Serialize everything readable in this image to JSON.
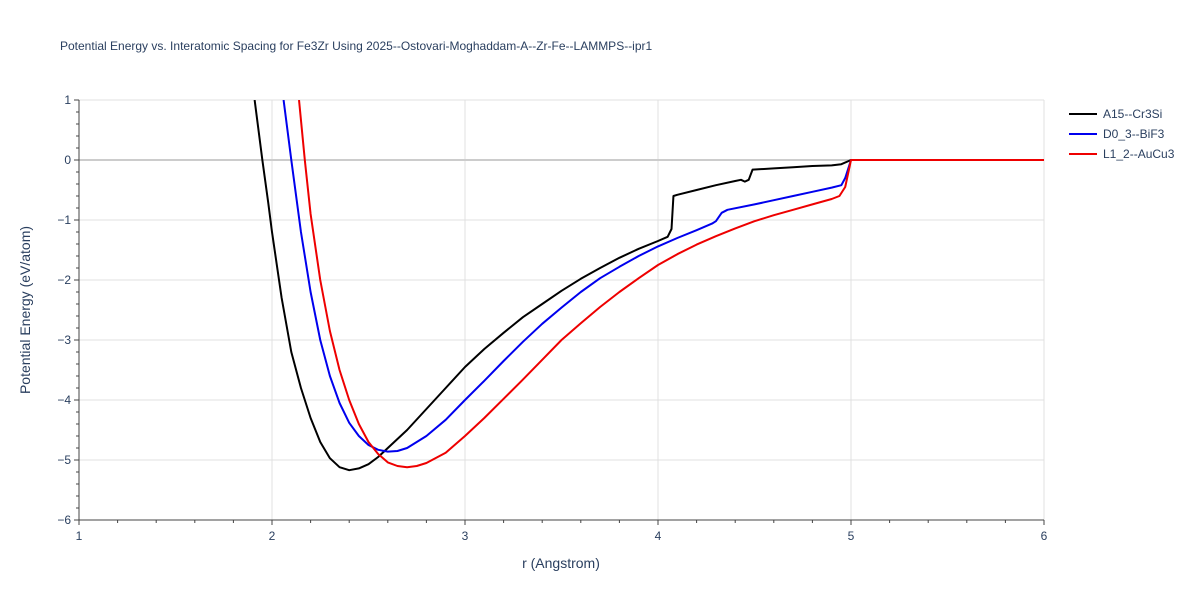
{
  "chart_data": {
    "type": "line",
    "title": "Potential Energy vs. Interatomic Spacing for Fe3Zr Using 2025--Ostovari-Moghaddam-A--Zr-Fe--LAMMPS--ipr1",
    "xlabel": "r (Angstrom)",
    "ylabel": "Potential Energy (eV/atom)",
    "xlim": [
      1,
      6
    ],
    "ylim": [
      -6,
      1
    ],
    "xticks": [
      1,
      2,
      3,
      4,
      5,
      6
    ],
    "yticks": [
      -6,
      -5,
      -4,
      -3,
      -2,
      -1,
      0,
      1
    ],
    "xtick_labels": [
      "1",
      "2",
      "3",
      "4",
      "5",
      "6"
    ],
    "ytick_labels": [
      "−6",
      "−5",
      "−4",
      "−3",
      "−2",
      "−1",
      "0",
      "1"
    ],
    "grid": true,
    "legend_position": "top-right",
    "series": [
      {
        "name": "A15--Cr3Si",
        "color": "#000000",
        "points": [
          [
            1.91,
            1.0
          ],
          [
            1.95,
            0.0
          ],
          [
            1.98,
            -0.7
          ],
          [
            2.0,
            -1.2
          ],
          [
            2.05,
            -2.3
          ],
          [
            2.1,
            -3.2
          ],
          [
            2.15,
            -3.8
          ],
          [
            2.2,
            -4.3
          ],
          [
            2.25,
            -4.7
          ],
          [
            2.3,
            -4.97
          ],
          [
            2.35,
            -5.12
          ],
          [
            2.4,
            -5.17
          ],
          [
            2.45,
            -5.14
          ],
          [
            2.5,
            -5.07
          ],
          [
            2.55,
            -4.95
          ],
          [
            2.6,
            -4.8
          ],
          [
            2.7,
            -4.5
          ],
          [
            2.8,
            -4.15
          ],
          [
            2.9,
            -3.8
          ],
          [
            3.0,
            -3.45
          ],
          [
            3.1,
            -3.15
          ],
          [
            3.2,
            -2.88
          ],
          [
            3.3,
            -2.62
          ],
          [
            3.4,
            -2.4
          ],
          [
            3.5,
            -2.18
          ],
          [
            3.6,
            -1.98
          ],
          [
            3.7,
            -1.8
          ],
          [
            3.8,
            -1.63
          ],
          [
            3.9,
            -1.48
          ],
          [
            4.0,
            -1.35
          ],
          [
            4.05,
            -1.28
          ],
          [
            4.07,
            -1.15
          ],
          [
            4.08,
            -0.6
          ],
          [
            4.1,
            -0.58
          ],
          [
            4.2,
            -0.5
          ],
          [
            4.3,
            -0.42
          ],
          [
            4.4,
            -0.35
          ],
          [
            4.43,
            -0.33
          ],
          [
            4.45,
            -0.36
          ],
          [
            4.47,
            -0.33
          ],
          [
            4.49,
            -0.16
          ],
          [
            4.6,
            -0.14
          ],
          [
            4.7,
            -0.12
          ],
          [
            4.8,
            -0.1
          ],
          [
            4.9,
            -0.09
          ],
          [
            4.95,
            -0.07
          ],
          [
            5.0,
            0.0
          ],
          [
            5.5,
            0.0
          ],
          [
            6.0,
            0.0
          ]
        ]
      },
      {
        "name": "D0_3--BiF3",
        "color": "#0000ee",
        "points": [
          [
            2.06,
            1.0
          ],
          [
            2.08,
            0.5
          ],
          [
            2.1,
            0.0
          ],
          [
            2.15,
            -1.2
          ],
          [
            2.2,
            -2.2
          ],
          [
            2.25,
            -3.0
          ],
          [
            2.3,
            -3.6
          ],
          [
            2.35,
            -4.05
          ],
          [
            2.4,
            -4.38
          ],
          [
            2.45,
            -4.6
          ],
          [
            2.5,
            -4.75
          ],
          [
            2.55,
            -4.83
          ],
          [
            2.6,
            -4.86
          ],
          [
            2.65,
            -4.85
          ],
          [
            2.7,
            -4.8
          ],
          [
            2.8,
            -4.6
          ],
          [
            2.9,
            -4.33
          ],
          [
            3.0,
            -4.0
          ],
          [
            3.1,
            -3.68
          ],
          [
            3.2,
            -3.35
          ],
          [
            3.3,
            -3.03
          ],
          [
            3.4,
            -2.73
          ],
          [
            3.5,
            -2.46
          ],
          [
            3.6,
            -2.2
          ],
          [
            3.7,
            -1.97
          ],
          [
            3.8,
            -1.78
          ],
          [
            3.9,
            -1.6
          ],
          [
            4.0,
            -1.44
          ],
          [
            4.1,
            -1.3
          ],
          [
            4.2,
            -1.17
          ],
          [
            4.28,
            -1.06
          ],
          [
            4.3,
            -1.02
          ],
          [
            4.33,
            -0.88
          ],
          [
            4.36,
            -0.83
          ],
          [
            4.5,
            -0.74
          ],
          [
            4.6,
            -0.67
          ],
          [
            4.7,
            -0.6
          ],
          [
            4.8,
            -0.53
          ],
          [
            4.9,
            -0.46
          ],
          [
            4.95,
            -0.42
          ],
          [
            4.97,
            -0.3
          ],
          [
            5.0,
            0.0
          ],
          [
            5.5,
            0.0
          ],
          [
            6.0,
            0.0
          ]
        ]
      },
      {
        "name": "L1_2--AuCu3",
        "color": "#ee0000",
        "points": [
          [
            2.14,
            1.0
          ],
          [
            2.17,
            0.0
          ],
          [
            2.2,
            -0.9
          ],
          [
            2.25,
            -2.0
          ],
          [
            2.3,
            -2.85
          ],
          [
            2.35,
            -3.5
          ],
          [
            2.4,
            -4.0
          ],
          [
            2.45,
            -4.4
          ],
          [
            2.5,
            -4.7
          ],
          [
            2.55,
            -4.9
          ],
          [
            2.6,
            -5.04
          ],
          [
            2.65,
            -5.1
          ],
          [
            2.7,
            -5.12
          ],
          [
            2.75,
            -5.1
          ],
          [
            2.8,
            -5.05
          ],
          [
            2.9,
            -4.88
          ],
          [
            3.0,
            -4.6
          ],
          [
            3.1,
            -4.3
          ],
          [
            3.2,
            -3.98
          ],
          [
            3.3,
            -3.66
          ],
          [
            3.4,
            -3.33
          ],
          [
            3.5,
            -3.0
          ],
          [
            3.6,
            -2.72
          ],
          [
            3.7,
            -2.45
          ],
          [
            3.8,
            -2.2
          ],
          [
            3.9,
            -1.97
          ],
          [
            4.0,
            -1.75
          ],
          [
            4.1,
            -1.57
          ],
          [
            4.2,
            -1.41
          ],
          [
            4.3,
            -1.27
          ],
          [
            4.4,
            -1.14
          ],
          [
            4.5,
            -1.02
          ],
          [
            4.6,
            -0.92
          ],
          [
            4.7,
            -0.83
          ],
          [
            4.8,
            -0.74
          ],
          [
            4.9,
            -0.65
          ],
          [
            4.94,
            -0.6
          ],
          [
            4.97,
            -0.45
          ],
          [
            5.0,
            0.0
          ],
          [
            5.5,
            0.0
          ],
          [
            6.0,
            0.0
          ]
        ]
      }
    ]
  }
}
